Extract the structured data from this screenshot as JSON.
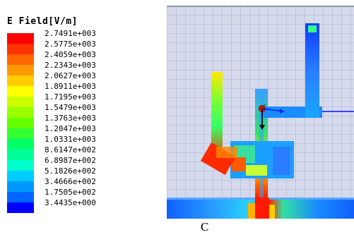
{
  "legend": {
    "title": "E Field[V/m]",
    "top_stub": "",
    "entries": [
      {
        "label": "2.7491e+003",
        "color": "#ff0000"
      },
      {
        "label": "2.5775e+003",
        "color": "#ff3300"
      },
      {
        "label": "2.4059e+003",
        "color": "#ff6600"
      },
      {
        "label": "2.2343e+003",
        "color": "#ff9900"
      },
      {
        "label": "2.0627e+003",
        "color": "#ffcc00"
      },
      {
        "label": "1.8911e+003",
        "color": "#ffff00"
      },
      {
        "label": "1.7195e+003",
        "color": "#ccff00"
      },
      {
        "label": "1.5479e+003",
        "color": "#99ff00"
      },
      {
        "label": "1.3763e+003",
        "color": "#66ff00"
      },
      {
        "label": "1.2047e+003",
        "color": "#33ff33"
      },
      {
        "label": "1.0331e+003",
        "color": "#00ff66"
      },
      {
        "label": "8.6147e+002",
        "color": "#00ff99"
      },
      {
        "label": "6.8987e+002",
        "color": "#00ffcc"
      },
      {
        "label": "5.1826e+002",
        "color": "#00ccff"
      },
      {
        "label": "3.4666e+002",
        "color": "#0099ff"
      },
      {
        "label": "1.7505e+002",
        "color": "#0066ff"
      },
      {
        "label": "3.4435e+000",
        "color": "#0000ff"
      }
    ]
  },
  "caption": "C"
}
